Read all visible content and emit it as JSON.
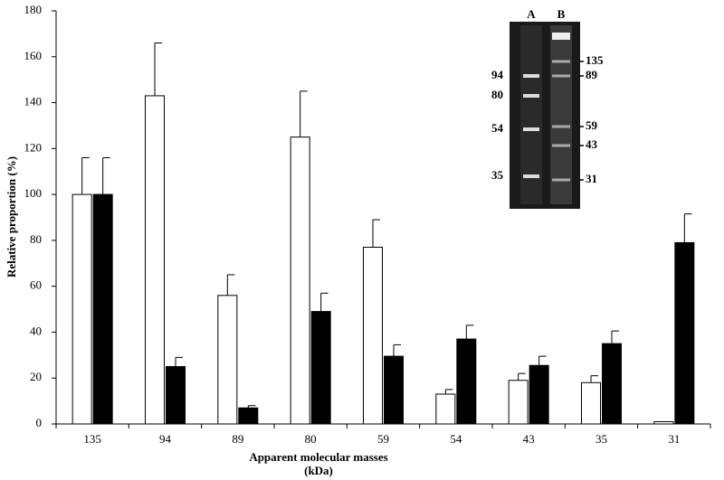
{
  "chart_data": {
    "type": "bar",
    "ylabel": "Relative proportion (%)",
    "xlabel": "Apparent molecular masses",
    "xlabel_unit": "(kDa)",
    "categories": [
      "135",
      "94",
      "89",
      "80",
      "59",
      "54",
      "43",
      "35",
      "31"
    ],
    "series": [
      {
        "color": "#ffffff",
        "values": [
          100,
          143,
          56,
          125,
          77,
          13,
          19,
          18,
          1
        ],
        "errors": [
          16,
          23,
          9,
          20,
          12,
          2,
          3,
          3,
          0
        ]
      },
      {
        "color": "#000000",
        "values": [
          100,
          25,
          7,
          49,
          29.5,
          37,
          25.5,
          35,
          79
        ],
        "errors": [
          16,
          4,
          1,
          8,
          5,
          6,
          4,
          5.5,
          12.5
        ]
      }
    ],
    "ylim": [
      0,
      180
    ],
    "yticks": [
      0,
      20,
      40,
      60,
      80,
      100,
      120,
      140,
      160,
      180
    ],
    "grid": false,
    "inset": {
      "lanes": [
        "A",
        "B"
      ],
      "left_markers": [
        94,
        80,
        54,
        35
      ],
      "right_markers": [
        135,
        89,
        59,
        43,
        31
      ]
    }
  }
}
